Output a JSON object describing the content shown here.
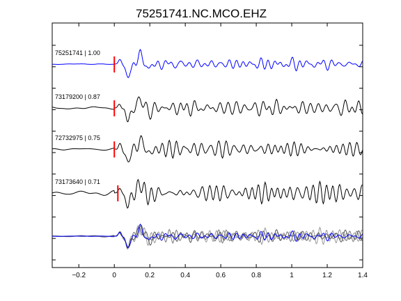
{
  "chart_data": {
    "type": "line",
    "title": "75251741.NC.MCO.EHZ",
    "xlabel": "",
    "ylabel": "",
    "xlim": [
      -0.35,
      1.4
    ],
    "xticks": [
      -0.2,
      0,
      0.2,
      0.4,
      0.6,
      0.8,
      1,
      1.2,
      1.4
    ],
    "xtick_labels": [
      "−0.2",
      "0",
      "0.2",
      "0.4",
      "0.6",
      "0.8",
      "1",
      "1.2",
      "1.4"
    ],
    "grid": false,
    "traces": [
      {
        "label": "75251741 | 1.00",
        "event_id": "75251741",
        "cc": 1.0,
        "color": "#0000ff",
        "pick_time": 0.0,
        "onset": 0.0,
        "seed": 3
      },
      {
        "label": "73179200 | 0.87",
        "event_id": "73179200",
        "cc": 0.87,
        "color": "#000000",
        "pick_time": 0.0,
        "onset": 0.0,
        "seed": 11
      },
      {
        "label": "72732975 | 0.75",
        "event_id": "72732975",
        "cc": 0.75,
        "color": "#000000",
        "pick_time": 0.0,
        "onset": 0.0,
        "seed": 23
      },
      {
        "label": "73173640 | 0.71",
        "event_id": "73173640",
        "cc": 0.71,
        "color": "#000000",
        "pick_time": 0.02,
        "onset": 0.0,
        "seed": 37
      }
    ],
    "stack": {
      "colors": [
        "#0000ff",
        "#555555",
        "#777777",
        "#999999"
      ]
    },
    "pick_color": "#ff0000"
  }
}
